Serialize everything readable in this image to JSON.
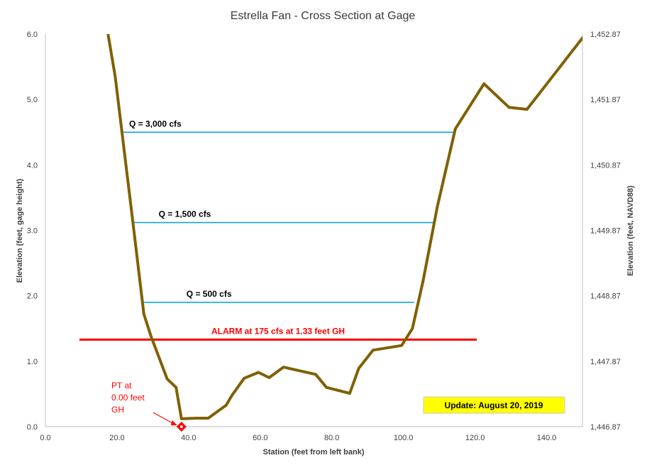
{
  "chart_data": {
    "type": "line",
    "title": "Estrella Fan - Cross Section at Gage",
    "xlabel": "Station (feet from left bank)",
    "ylabel": "Elevation  (feet, gage height)",
    "y2label": "Elevation  (feet, NAVD88)",
    "xlim": [
      0,
      150
    ],
    "ylim": [
      0,
      6
    ],
    "x_ticks": [
      "0.0",
      "20.0",
      "40.0",
      "60.0",
      "80.0",
      "100.0",
      "120.0",
      "140.0"
    ],
    "y_ticks": [
      "0.0",
      "1.0",
      "2.0",
      "3.0",
      "4.0",
      "5.0",
      "6.0"
    ],
    "y2_ticks": [
      "1,446.87",
      "1,447.87",
      "1,448.87",
      "1,449.87",
      "1,450.87",
      "1,451.87",
      "1,452.87"
    ],
    "grid": false,
    "series": [
      {
        "color": "#7f6000",
        "x": [
          17.5,
          19.5,
          21.5,
          24.5,
          27.5,
          29.5,
          34,
          36.5,
          38,
          42,
          45.5,
          50.5,
          52,
          55.5,
          59.5,
          62.5,
          66.5,
          70.5,
          75.5,
          78.5,
          85,
          87.5,
          91.5,
          99.5,
          102.5,
          105.5,
          109.5,
          114.5,
          122.5,
          129.5,
          134.5,
          139.5,
          150
        ],
        "y": [
          6.0,
          5.35,
          4.45,
          3.1,
          1.72,
          1.38,
          0.73,
          0.6,
          0.12,
          0.13,
          0.13,
          0.33,
          0.47,
          0.74,
          0.83,
          0.75,
          0.91,
          0.86,
          0.8,
          0.6,
          0.51,
          0.89,
          1.17,
          1.24,
          1.5,
          2.23,
          3.37,
          4.55,
          5.24,
          4.88,
          4.85,
          5.2,
          5.94
        ]
      }
    ],
    "reference_lines": [
      {
        "label": "Q = 3,000  cfs",
        "y": 4.5,
        "x_start": 21,
        "x_end": 114.5,
        "color": "#00a0e0"
      },
      {
        "label": "Q = 1,500  cfs",
        "y": 3.12,
        "x_start": 24.5,
        "x_end": 108.5,
        "color": "#00a0e0"
      },
      {
        "label": "Q = 500  cfs",
        "y": 1.9,
        "x_start": 27.5,
        "x_end": 103,
        "color": "#00a0e0"
      },
      {
        "label": "ALARM at 175  cfs at 1.33  feet GH",
        "y": 1.33,
        "x_start": 9.5,
        "x_end": 120.5,
        "color": "#ff0000"
      }
    ],
    "marker": {
      "label_lines": [
        "PT at",
        "0.00  feet",
        "GH"
      ],
      "x": 38,
      "y": 0.0,
      "color": "#ff0000"
    },
    "update_box": {
      "text": "Update: August 20, 2019",
      "background": "#ffff00"
    }
  }
}
